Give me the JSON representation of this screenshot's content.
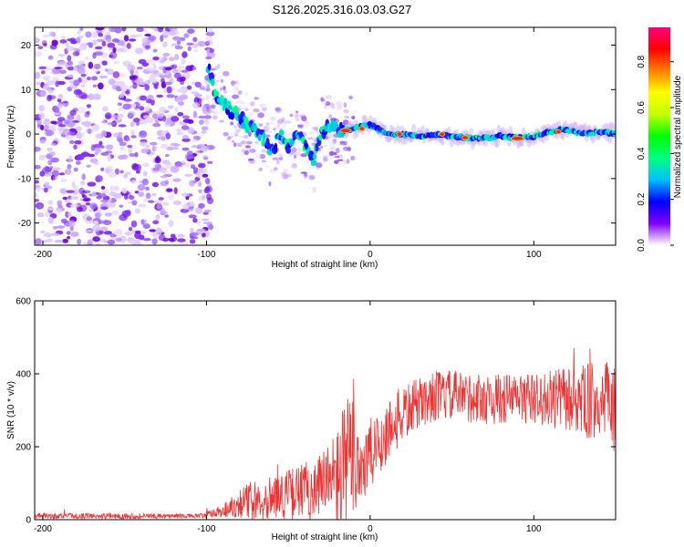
{
  "title": "S126.2025.316.03.03.G27",
  "chart_data": [
    {
      "type": "heatmap",
      "name": "spectrogram",
      "xlabel": "Height of straight line (km)",
      "ylabel": "Frequency (Hz)",
      "xlim": [
        -205,
        150
      ],
      "ylim": [
        -25,
        24
      ],
      "xticks": [
        -200,
        -100,
        0,
        100
      ],
      "yticks": [
        -20,
        -10,
        0,
        10,
        20
      ],
      "xtick_labels": [
        "-200",
        "-100",
        "0",
        "100"
      ],
      "ytick_labels": [
        "-20",
        "-10",
        "0",
        "10",
        "20"
      ],
      "ridge": {
        "x": [
          -100,
          -95,
          -90,
          -85,
          -80,
          -75,
          -70,
          -65,
          -60,
          -55,
          -50,
          -45,
          -40,
          -35,
          -30,
          -25,
          -20,
          -15,
          -10,
          -5,
          0,
          5,
          10,
          20,
          30,
          40,
          50,
          60,
          70,
          80,
          90,
          100,
          110,
          120,
          130,
          140,
          150
        ],
        "freq": [
          17,
          9,
          7,
          5,
          4,
          2,
          1,
          -1,
          -4,
          0,
          -3,
          1,
          -3,
          -6,
          0,
          2,
          1,
          1,
          1,
          2,
          2,
          1,
          0,
          0,
          -0.5,
          0,
          -0.5,
          -0.8,
          -1,
          -0.5,
          -0.8,
          -0.5,
          0.5,
          1,
          0,
          0.5,
          0
        ]
      },
      "colorbar": {
        "label": "Normalized spectral amplitude",
        "range": [
          0,
          0.95
        ],
        "ticks": [
          0.0,
          0.2,
          0.4,
          0.6,
          0.8
        ],
        "tick_labels": [
          "0.0",
          "0.2",
          "0.4",
          "0.6",
          "0.8"
        ],
        "colormap": [
          "#ffffff",
          "#8000ff",
          "#0000ff",
          "#00c0ff",
          "#00ff80",
          "#00ff00",
          "#c0ff00",
          "#ffff00",
          "#ff8000",
          "#ff0000",
          "#ff0080"
        ]
      }
    },
    {
      "type": "line",
      "name": "snr",
      "xlabel": "Height of straight line (km)",
      "ylabel": "SNR (10 * v/v)",
      "xlim": [
        -205,
        150
      ],
      "ylim": [
        0,
        600
      ],
      "xticks": [
        -200,
        -100,
        0,
        100
      ],
      "yticks": [
        0,
        200,
        400,
        600
      ],
      "xtick_labels": [
        "-200",
        "-100",
        "0",
        "100"
      ],
      "ytick_labels": [
        "0",
        "200",
        "400",
        "600"
      ],
      "color": "#ee3333",
      "envelope": {
        "x": [
          -205,
          -150,
          -105,
          -100,
          -90,
          -80,
          -70,
          -60,
          -50,
          -40,
          -30,
          -20,
          -15,
          -10,
          -5,
          0,
          5,
          10,
          20,
          30,
          40,
          50,
          60,
          70,
          80,
          90,
          100,
          110,
          120,
          130,
          140,
          150
        ],
        "mean": [
          10,
          10,
          10,
          12,
          25,
          45,
          55,
          60,
          70,
          80,
          90,
          110,
          140,
          170,
          150,
          170,
          200,
          240,
          290,
          320,
          340,
          340,
          335,
          330,
          330,
          335,
          330,
          330,
          330,
          325,
          320,
          300
        ],
        "amplitude": [
          8,
          8,
          6,
          10,
          20,
          40,
          60,
          60,
          70,
          80,
          100,
          150,
          200,
          180,
          120,
          110,
          100,
          90,
          80,
          70,
          70,
          70,
          70,
          70,
          70,
          70,
          70,
          80,
          90,
          100,
          120,
          130
        ]
      }
    }
  ]
}
